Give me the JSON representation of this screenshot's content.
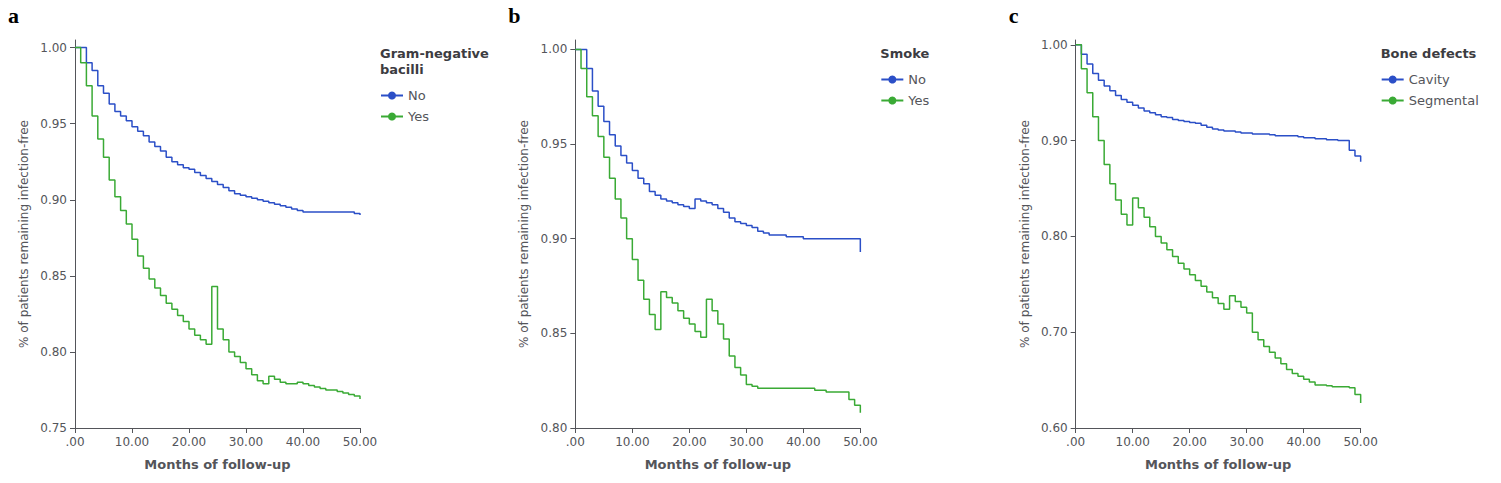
{
  "chart_data": [
    {
      "type": "step",
      "title": "Gram-negative\nbacilli",
      "annotations": [
        {
          "text": "a"
        }
      ],
      "xlabel": "Months of follow-up",
      "ylabel": "% of patients remaining infection-free",
      "xlim": [
        0,
        50
      ],
      "ylim": [
        0.75,
        1.005
      ],
      "xticks": [
        {
          "value": 0,
          "label": ".00"
        },
        {
          "value": 10,
          "label": "10.00"
        },
        {
          "value": 20,
          "label": "20.00"
        },
        {
          "value": 30,
          "label": "30.00"
        },
        {
          "value": 40,
          "label": "40.00"
        },
        {
          "value": 50,
          "label": "50.00"
        }
      ],
      "yticks": [
        0.75,
        {
          "value": 0.8,
          "label": "0.80"
        },
        0.85,
        {
          "value": 0.9,
          "label": "0.90"
        },
        0.95,
        {
          "value": 1,
          "label": "1.00"
        }
      ],
      "grid": false,
      "legend": "upper right",
      "series": [
        {
          "name": "No",
          "color": "#2B4FC7",
          "x": [
            0,
            2,
            3,
            4,
            5,
            6,
            7,
            8,
            9,
            10,
            11,
            12,
            13,
            14,
            15,
            16,
            17,
            18,
            19,
            20,
            21,
            22,
            23,
            24,
            25,
            26,
            27,
            28,
            29,
            30,
            31,
            32,
            33,
            34,
            35,
            36,
            37,
            38,
            39,
            40,
            41,
            42,
            43,
            44,
            45,
            46,
            47,
            48,
            49,
            50
          ],
          "values": [
            1.0,
            0.99,
            0.985,
            0.975,
            0.97,
            0.963,
            0.958,
            0.955,
            0.952,
            0.948,
            0.945,
            0.942,
            0.938,
            0.935,
            0.932,
            0.928,
            0.925,
            0.923,
            0.921,
            0.92,
            0.918,
            0.916,
            0.914,
            0.912,
            0.91,
            0.908,
            0.906,
            0.904,
            0.903,
            0.902,
            0.901,
            0.9,
            0.899,
            0.898,
            0.897,
            0.896,
            0.895,
            0.894,
            0.893,
            0.892,
            0.892,
            0.892,
            0.892,
            0.892,
            0.892,
            0.892,
            0.892,
            0.892,
            0.891,
            0.89
          ]
        },
        {
          "name": "Yes",
          "color": "#3AAA35",
          "x": [
            0,
            1,
            2,
            3,
            4,
            5,
            6,
            7,
            8,
            9,
            10,
            11,
            12,
            13,
            14,
            15,
            16,
            17,
            18,
            19,
            20,
            21,
            22,
            23,
            24,
            25,
            26,
            27,
            28,
            29,
            30,
            31,
            32,
            33,
            34,
            35,
            36,
            37,
            38,
            39,
            40,
            41,
            42,
            43,
            44,
            45,
            46,
            47,
            48,
            49,
            50
          ],
          "values": [
            1.0,
            0.99,
            0.975,
            0.955,
            0.94,
            0.928,
            0.913,
            0.902,
            0.893,
            0.884,
            0.874,
            0.863,
            0.855,
            0.848,
            0.842,
            0.837,
            0.832,
            0.828,
            0.824,
            0.82,
            0.815,
            0.811,
            0.808,
            0.805,
            0.843,
            0.815,
            0.808,
            0.8,
            0.797,
            0.793,
            0.789,
            0.785,
            0.781,
            0.779,
            0.784,
            0.782,
            0.78,
            0.779,
            0.779,
            0.78,
            0.779,
            0.778,
            0.777,
            0.776,
            0.775,
            0.775,
            0.774,
            0.773,
            0.772,
            0.771,
            0.769
          ]
        }
      ]
    },
    {
      "type": "step",
      "title": "Smoke",
      "annotations": [
        {
          "text": "b"
        }
      ],
      "xlabel": "Months of follow-up",
      "ylabel": "% of patients remaining infection-free",
      "xlim": [
        0,
        50
      ],
      "ylim": [
        0.8,
        1.005
      ],
      "xticks": [
        {
          "value": 0,
          "label": ".00"
        },
        {
          "value": 10,
          "label": "10.00"
        },
        {
          "value": 20,
          "label": "20.00"
        },
        {
          "value": 30,
          "label": "30.00"
        },
        {
          "value": 40,
          "label": "40.00"
        },
        {
          "value": 50,
          "label": "50.00"
        }
      ],
      "yticks": [
        {
          "value": 0.8,
          "label": "0.80"
        },
        0.85,
        {
          "value": 0.9,
          "label": "0.90"
        },
        0.95,
        {
          "value": 1,
          "label": "1.00"
        }
      ],
      "grid": false,
      "legend": "upper right",
      "series": [
        {
          "name": "No",
          "color": "#2B4FC7",
          "x": [
            0,
            2,
            3,
            4,
            5,
            6,
            7,
            8,
            9,
            10,
            11,
            12,
            13,
            14,
            15,
            16,
            17,
            18,
            19,
            20,
            21,
            22,
            23,
            24,
            25,
            26,
            27,
            28,
            29,
            30,
            31,
            32,
            33,
            34,
            35,
            36,
            37,
            38,
            39,
            40,
            41,
            42,
            43,
            44,
            45,
            46,
            47,
            48,
            49,
            50
          ],
          "values": [
            1.0,
            0.99,
            0.978,
            0.97,
            0.962,
            0.955,
            0.949,
            0.944,
            0.94,
            0.936,
            0.932,
            0.929,
            0.925,
            0.923,
            0.921,
            0.92,
            0.919,
            0.918,
            0.917,
            0.916,
            0.921,
            0.92,
            0.919,
            0.918,
            0.916,
            0.914,
            0.911,
            0.909,
            0.908,
            0.907,
            0.906,
            0.904,
            0.903,
            0.902,
            0.902,
            0.902,
            0.901,
            0.901,
            0.901,
            0.9,
            0.9,
            0.9,
            0.9,
            0.9,
            0.9,
            0.9,
            0.9,
            0.9,
            0.9,
            0.893
          ]
        },
        {
          "name": "Yes",
          "color": "#3AAA35",
          "x": [
            0,
            1,
            2,
            3,
            4,
            5,
            6,
            7,
            8,
            9,
            10,
            11,
            12,
            13,
            14,
            15,
            16,
            17,
            18,
            19,
            20,
            21,
            22,
            23,
            24,
            25,
            26,
            27,
            28,
            29,
            30,
            31,
            32,
            33,
            34,
            35,
            36,
            37,
            38,
            39,
            40,
            41,
            42,
            43,
            44,
            45,
            46,
            47,
            48,
            49,
            50
          ],
          "values": [
            1.0,
            0.99,
            0.975,
            0.965,
            0.954,
            0.943,
            0.932,
            0.921,
            0.911,
            0.9,
            0.889,
            0.878,
            0.868,
            0.86,
            0.852,
            0.872,
            0.869,
            0.866,
            0.862,
            0.858,
            0.855,
            0.851,
            0.848,
            0.868,
            0.862,
            0.855,
            0.847,
            0.838,
            0.832,
            0.828,
            0.823,
            0.822,
            0.821,
            0.821,
            0.821,
            0.821,
            0.821,
            0.821,
            0.821,
            0.821,
            0.821,
            0.821,
            0.82,
            0.82,
            0.819,
            0.819,
            0.819,
            0.819,
            0.815,
            0.812,
            0.808
          ]
        }
      ]
    },
    {
      "type": "step",
      "title": "Bone defects",
      "annotations": [
        {
          "text": "c"
        }
      ],
      "xlabel": "Months of follow-up",
      "ylabel": "% of patients remaining infection-free",
      "xlim": [
        0,
        50
      ],
      "ylim": [
        0.6,
        1.005
      ],
      "xticks": [
        {
          "value": 0,
          "label": ".00"
        },
        {
          "value": 10,
          "label": "10.00"
        },
        {
          "value": 20,
          "label": "20.00"
        },
        {
          "value": 30,
          "label": "30.00"
        },
        {
          "value": 40,
          "label": "40.00"
        },
        {
          "value": 50,
          "label": "50.00"
        }
      ],
      "yticks": [
        {
          "value": 0.6,
          "label": "0.60"
        },
        {
          "value": 0.7,
          "label": "0.70"
        },
        {
          "value": 0.8,
          "label": "0.80"
        },
        {
          "value": 0.9,
          "label": "0.90"
        },
        {
          "value": 1,
          "label": "1.00"
        }
      ],
      "grid": false,
      "legend": "upper right",
      "series": [
        {
          "name": "Cavity",
          "color": "#2B4FC7",
          "x": [
            0,
            1,
            2,
            3,
            4,
            5,
            6,
            7,
            8,
            9,
            10,
            11,
            12,
            13,
            14,
            15,
            16,
            17,
            18,
            19,
            20,
            21,
            22,
            23,
            24,
            25,
            26,
            27,
            28,
            29,
            30,
            31,
            32,
            33,
            34,
            35,
            36,
            37,
            38,
            39,
            40,
            41,
            42,
            43,
            44,
            45,
            46,
            47,
            48,
            49,
            50
          ],
          "values": [
            1.0,
            0.99,
            0.98,
            0.97,
            0.963,
            0.957,
            0.952,
            0.947,
            0.943,
            0.94,
            0.937,
            0.934,
            0.931,
            0.929,
            0.927,
            0.925,
            0.924,
            0.922,
            0.921,
            0.92,
            0.919,
            0.918,
            0.916,
            0.914,
            0.912,
            0.911,
            0.91,
            0.91,
            0.909,
            0.908,
            0.908,
            0.907,
            0.907,
            0.907,
            0.906,
            0.905,
            0.905,
            0.905,
            0.905,
            0.904,
            0.903,
            0.903,
            0.902,
            0.902,
            0.901,
            0.901,
            0.9,
            0.9,
            0.89,
            0.884,
            0.878
          ]
        },
        {
          "name": "Segmental",
          "color": "#3AAA35",
          "x": [
            0,
            1,
            2,
            3,
            4,
            5,
            6,
            7,
            8,
            9,
            10,
            11,
            12,
            13,
            14,
            15,
            16,
            17,
            18,
            19,
            20,
            21,
            22,
            23,
            24,
            25,
            26,
            27,
            28,
            29,
            30,
            31,
            32,
            33,
            34,
            35,
            36,
            37,
            38,
            39,
            40,
            41,
            42,
            43,
            44,
            45,
            46,
            47,
            48,
            49,
            50
          ],
          "values": [
            1.0,
            0.975,
            0.95,
            0.925,
            0.9,
            0.875,
            0.855,
            0.838,
            0.823,
            0.812,
            0.84,
            0.83,
            0.82,
            0.81,
            0.8,
            0.793,
            0.786,
            0.779,
            0.772,
            0.766,
            0.76,
            0.754,
            0.748,
            0.742,
            0.736,
            0.73,
            0.724,
            0.738,
            0.732,
            0.726,
            0.72,
            0.7,
            0.692,
            0.685,
            0.679,
            0.673,
            0.667,
            0.661,
            0.657,
            0.654,
            0.651,
            0.648,
            0.645,
            0.645,
            0.644,
            0.643,
            0.643,
            0.643,
            0.642,
            0.635,
            0.626
          ]
        }
      ]
    }
  ]
}
